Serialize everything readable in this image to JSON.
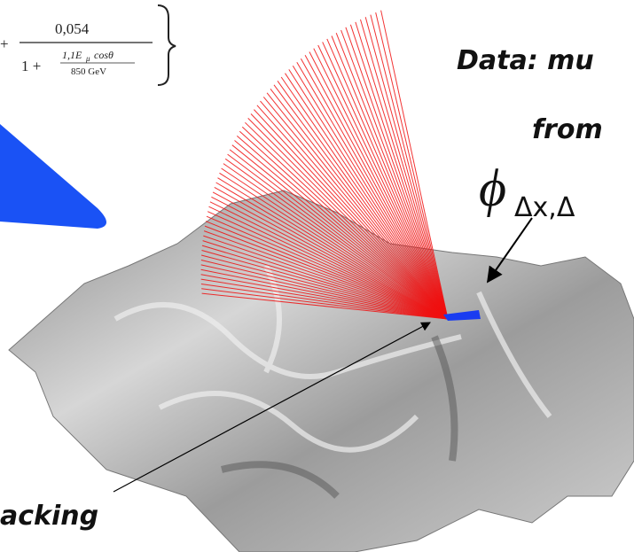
{
  "formula": {
    "plus": "+",
    "numerator": "0,054",
    "denominator_one": "1 +",
    "inner_numerator_base": "1,1E",
    "inner_numerator_sub": "μ",
    "inner_numerator_rest": "cosθ",
    "inner_denominator": "850 GeV"
  },
  "heading": {
    "line1": "Data: mu",
    "line2": "from",
    "symbol": "ϕ",
    "symbol_sub": "Δx,Δ"
  },
  "caption": "acking"
}
